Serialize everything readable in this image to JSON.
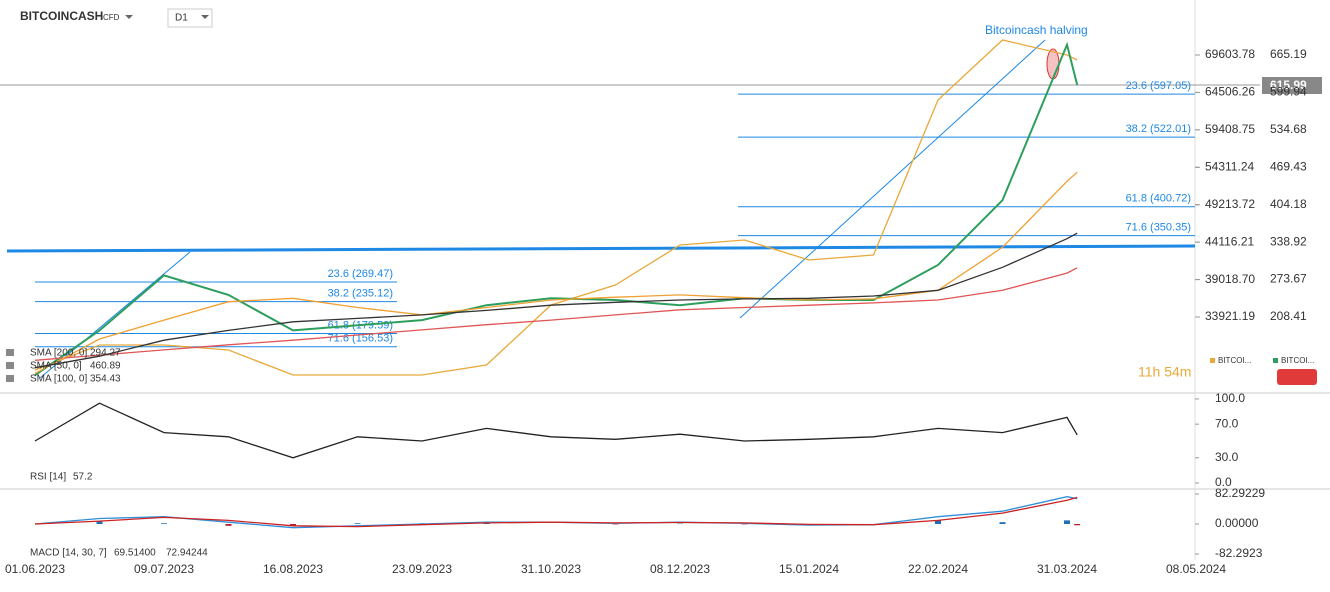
{
  "header": {
    "symbol": "BITCOINCASH",
    "kind": "CFD",
    "interval": "D1"
  },
  "chart_data": [
    {
      "type": "line",
      "annotation": "Bitcoincash halving",
      "last_price": 615.99,
      "countdown": "11h 54m",
      "x": [
        "01.06.2023",
        "20.06.2023",
        "09.07.2023",
        "28.07.2023",
        "16.08.2023",
        "04.09.2023",
        "23.09.2023",
        "12.10.2023",
        "31.10.2023",
        "19.11.2023",
        "08.12.2023",
        "27.12.2023",
        "15.01.2024",
        "03.02.2024",
        "22.02.2024",
        "12.03.2024",
        "31.03.2024",
        "03.04.2024"
      ],
      "xticks": [
        "01.06.2023",
        "09.07.2023",
        "16.08.2023",
        "23.09.2023",
        "31.10.2023",
        "08.12.2023",
        "15.01.2024",
        "22.02.2024",
        "31.03.2024",
        "08.05.2024"
      ],
      "ylim": [
        75.9,
        761.1
      ],
      "yticks": [
        665.19,
        599.94,
        534.68,
        469.43,
        404.18,
        338.92,
        273.67,
        208.41
      ],
      "y2lim": [
        23573,
        77094
      ],
      "y2ticks": [
        69603.78,
        64506.26,
        59408.75,
        54311.24,
        49213.72,
        44116.21,
        {
          "value": 39018.7,
          "label": "39018.70"
        },
        33921.19
      ],
      "fib_upper": [
        {
          "label": "23.6 (597.05)",
          "value": 597.05
        },
        {
          "label": "38.2 (522.01)",
          "value": 522.01
        },
        {
          "label": "61.8 (400.72)",
          "value": 400.72
        },
        {
          "label": "71.6 (350.35)",
          "value": 350.35
        }
      ],
      "fib_lower": [
        {
          "label": "23.6 (269.47)",
          "value": 269.47
        },
        {
          "label": "38.2 (235.12)",
          "value": 235.12
        },
        {
          "label": "61.8 (179.59)",
          "value": 179.59
        },
        {
          "label": "71.6 (156.53)",
          "value": 156.53
        }
      ],
      "series": [
        {
          "name": "BITCOI...",
          "color": "#e8a93a",
          "axis": "y2",
          "values": [
            26706,
            30110,
            30110,
            29430,
            26025,
            26025,
            26025,
            27387,
            35558,
            38282,
            43730,
            44410,
            41686,
            42367,
            63475,
            71647,
            69604,
            68923
          ]
        },
        {
          "name": "BITCOI...",
          "color": "#2e9e5e",
          "values": [
            107,
            185,
            281,
            247,
            185,
            194,
            203,
            229,
            241,
            238,
            229,
            241,
            238,
            238,
            299,
            412,
            683,
            613
          ]
        },
        {
          "name": "SMA [200, 0]",
          "legend_value": 294.27,
          "color": "#e05555",
          "values": [
            133,
            142,
            151,
            160,
            168,
            177,
            186,
            195,
            203,
            212,
            221,
            225,
            229,
            233,
            238,
            255,
            285,
            294.27
          ]
        },
        {
          "name": "SMA [50, 0]",
          "legend_value": 460.89,
          "color": "#f0a030",
          "values": [
            110,
            170,
            203,
            235,
            241,
            225,
            212,
            225,
            238,
            243,
            247,
            242,
            238,
            240,
            255,
            330,
            445,
            460.89
          ]
        },
        {
          "name": "SMA [100, 0]",
          "legend_value": 354.43,
          "color": "#333333",
          "values": [
            120,
            140,
            168,
            185,
            200,
            206,
            212,
            220,
            229,
            234,
            238,
            240,
            241,
            245,
            255,
            295,
            345,
            354.43
          ]
        }
      ]
    },
    {
      "type": "line",
      "label": "RSI [14]",
      "legend_value": 57.2,
      "x": [
        "01.06.2023",
        "20.06.2023",
        "09.07.2023",
        "28.07.2023",
        "16.08.2023",
        "04.09.2023",
        "23.09.2023",
        "12.10.2023",
        "31.10.2023",
        "19.11.2023",
        "08.12.2023",
        "27.12.2023",
        "15.01.2024",
        "03.02.2024",
        "22.02.2024",
        "12.03.2024",
        "31.03.2024",
        "03.04.2024"
      ],
      "ylim": [
        -4.8,
        107.1
      ],
      "yticks": [
        {
          "value": 100,
          "label": "100.0"
        },
        {
          "value": 70,
          "label": "70.0"
        },
        {
          "value": 30,
          "label": "30.0"
        },
        {
          "value": 0,
          "label": "0.0"
        }
      ],
      "series": [
        {
          "color": "#222222",
          "values": [
            50,
            95,
            60,
            55,
            30,
            55,
            50,
            65,
            55,
            52,
            58,
            50,
            52,
            55,
            65,
            60,
            78,
            57.2
          ]
        }
      ]
    },
    {
      "type": "line",
      "label": "MACD [14, 30, 7]",
      "x": [
        "01.06.2023",
        "20.06.2023",
        "09.07.2023",
        "28.07.2023",
        "16.08.2023",
        "04.09.2023",
        "23.09.2023",
        "12.10.2023",
        "31.10.2023",
        "19.11.2023",
        "08.12.2023",
        "27.12.2023",
        "15.01.2024",
        "03.02.2024",
        "22.02.2024",
        "12.03.2024",
        "31.03.2024",
        "03.04.2024"
      ],
      "ylim": [
        -98.7,
        96
      ],
      "yticks": [
        82.29229,
        {
          "value": 0,
          "label": "0.00000"
        },
        -82.2923
      ],
      "histogram": {
        "color": "#1f6fb5",
        "neg_color": "#b22222",
        "values": [
          0,
          7,
          2,
          -5,
          -5,
          2,
          2,
          2,
          0,
          -1,
          1,
          -1,
          -2,
          0,
          10,
          5,
          10,
          -3.4
        ]
      },
      "series": [
        {
          "color": "#2f8fd8",
          "legend_value": 69.514,
          "value_label": "69.51400",
          "values": [
            0,
            15,
            20,
            5,
            -10,
            -5,
            0,
            5,
            5,
            2,
            5,
            2,
            -3,
            -2,
            20,
            35,
            75,
            69.514
          ]
        },
        {
          "color": "#cc2222",
          "legend_value": 72.94244,
          "value_label": "72.94244",
          "values": [
            0,
            8,
            18,
            10,
            -5,
            -7,
            -2,
            3,
            5,
            3,
            4,
            3,
            -1,
            -2,
            10,
            30,
            65,
            72.94244
          ]
        }
      ]
    }
  ]
}
